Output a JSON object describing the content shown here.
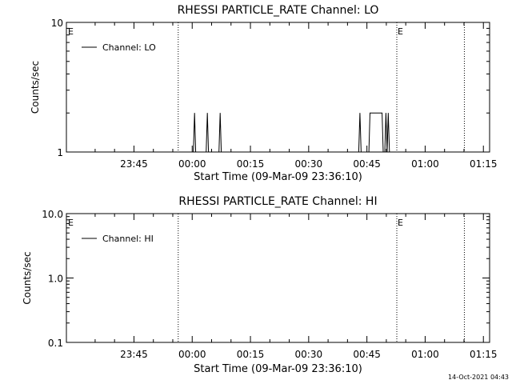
{
  "chart_data": [
    {
      "type": "line",
      "title": "RHESSI PARTICLE_RATE Channel: LO",
      "xlabel": "Start Time (09-Mar-09 23:36:10)",
      "ylabel": "Counts/sec",
      "y_scale": "log",
      "ylim": [
        1,
        10
      ],
      "y_ticks": [
        "1",
        "10"
      ],
      "x_ticks": [
        "23:45",
        "00:00",
        "00:15",
        "00:30",
        "00:45",
        "01:00",
        "01:15"
      ],
      "xlim_minutes_from_2345": [
        -17.4,
        91.6
      ],
      "legend_position": "top-left",
      "grid": false,
      "series": [
        {
          "name": "Channel: LO",
          "color": "#000000",
          "points_minutes_from_2345": [
            [
              -17.4,
              1
            ],
            [
              15.3,
              1
            ],
            [
              15.6,
              2
            ],
            [
              15.9,
              1
            ],
            [
              18.6,
              1
            ],
            [
              18.9,
              2
            ],
            [
              19.2,
              1
            ],
            [
              21.9,
              1
            ],
            [
              22.2,
              2
            ],
            [
              22.5,
              1
            ],
            [
              57.9,
              1
            ],
            [
              58.2,
              2
            ],
            [
              58.5,
              1
            ],
            [
              60.5,
              1
            ],
            [
              60.8,
              2
            ],
            [
              63.9,
              2
            ],
            [
              64.2,
              1
            ],
            [
              64.6,
              1
            ],
            [
              64.9,
              2
            ],
            [
              65.2,
              1
            ],
            [
              65.5,
              2
            ],
            [
              65.8,
              1
            ],
            [
              91.6,
              1
            ]
          ]
        }
      ],
      "vlines_minutes_from_2345": [
        11.4,
        67.7,
        85.1
      ],
      "markers": [
        {
          "label": "E",
          "x_minutes_from_2345": -17.0
        },
        {
          "label": "E",
          "x_minutes_from_2345": 67.9
        }
      ]
    },
    {
      "type": "line",
      "title": "RHESSI PARTICLE_RATE Channel: HI",
      "xlabel": "Start Time (09-Mar-09 23:36:10)",
      "ylabel": "Counts/sec",
      "y_scale": "log",
      "ylim": [
        0.1,
        10
      ],
      "y_ticks": [
        "0.1",
        "1.0",
        "10.0"
      ],
      "x_ticks": [
        "23:45",
        "00:00",
        "00:15",
        "00:30",
        "00:45",
        "01:00",
        "01:15"
      ],
      "xlim_minutes_from_2345": [
        -17.4,
        91.6
      ],
      "legend_position": "top-left",
      "grid": false,
      "series": [
        {
          "name": "Channel: HI",
          "color": "#000000",
          "points_minutes_from_2345": []
        }
      ],
      "vlines_minutes_from_2345": [
        11.4,
        67.7,
        85.1
      ],
      "markers": [
        {
          "label": "E",
          "x_minutes_from_2345": -17.0
        },
        {
          "label": "E",
          "x_minutes_from_2345": 67.9
        }
      ]
    }
  ],
  "footer": {
    "timestamp": "14-Oct-2021 04:43"
  }
}
